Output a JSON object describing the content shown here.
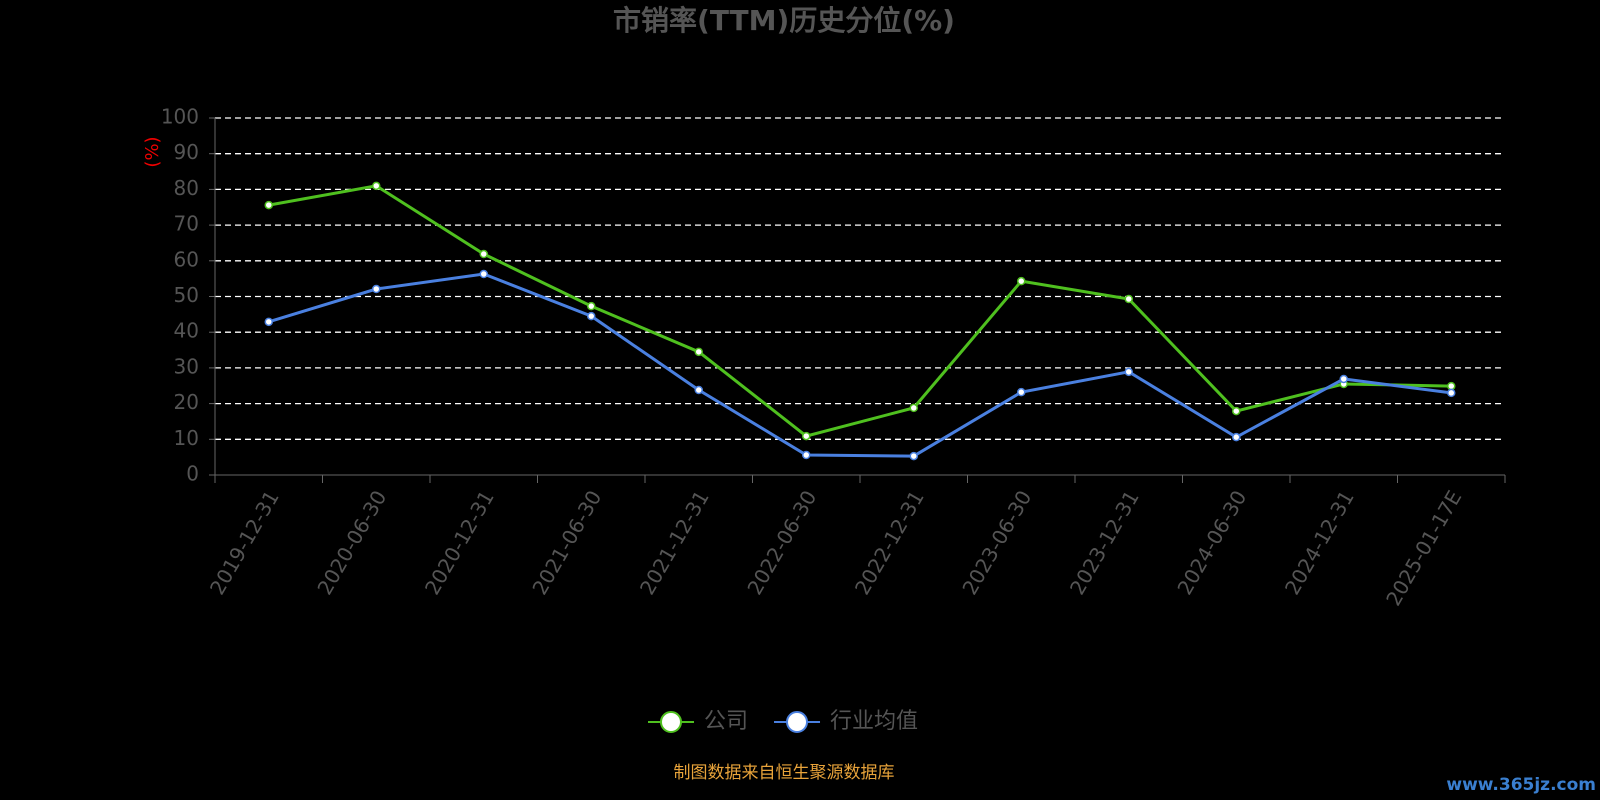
{
  "chart_data": {
    "type": "line",
    "title": "市销率(TTM)历史分位(%)",
    "y_label": "(%)",
    "categories": [
      "2019-12-31",
      "2020-06-30",
      "2020-12-31",
      "2021-06-30",
      "2021-12-31",
      "2022-06-30",
      "2022-12-31",
      "2023-06-30",
      "2023-12-31",
      "2024-06-30",
      "2024-12-31",
      "2025-01-17E"
    ],
    "series": [
      {
        "name": "公司",
        "color": "#4fc01f",
        "values": [
          75.6,
          81.0,
          61.9,
          47.3,
          34.5,
          10.9,
          18.8,
          54.3,
          49.3,
          17.9,
          25.5,
          24.9
        ]
      },
      {
        "name": "行业均值",
        "color": "#4a80e0",
        "values": [
          42.9,
          52.1,
          56.3,
          44.5,
          23.8,
          5.6,
          5.3,
          23.2,
          28.9,
          10.6,
          26.9,
          23.0
        ]
      }
    ],
    "ylim": [
      0,
      100
    ],
    "yticks": [
      0,
      10,
      20,
      30,
      40,
      50,
      60,
      70,
      80,
      90,
      100
    ],
    "grid": true,
    "legend": "bottom",
    "source": "制图数据来自恒生聚源数据库",
    "watermark": "www.365jz.com"
  }
}
